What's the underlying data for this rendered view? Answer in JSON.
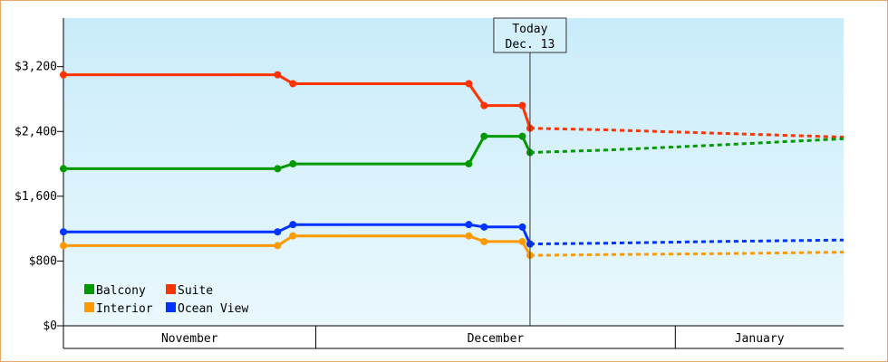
{
  "chart_data": {
    "type": "line",
    "title": "",
    "xlabel": "",
    "ylabel": "",
    "x_start": "2023-10-13",
    "x_end": "2024-01-23",
    "today_date": "2023-12-13",
    "ylim": [
      0,
      3800
    ],
    "y_ticks": [
      {
        "value": 0,
        "label": "$0"
      },
      {
        "value": 800,
        "label": "$800"
      },
      {
        "value": 1600,
        "label": "$1,600"
      },
      {
        "value": 2400,
        "label": "$2,400"
      },
      {
        "value": 3200,
        "label": "$3,200"
      }
    ],
    "months": [
      {
        "label": "November",
        "start": "2023-10-13",
        "end": "2023-11-15"
      },
      {
        "label": "December",
        "start": "2023-11-15",
        "end": "2024-01-01"
      },
      {
        "label": "January",
        "start": "2024-01-01",
        "end": "2024-01-23"
      }
    ],
    "today_marker": {
      "line1": "Today",
      "line2": "Dec. 13"
    },
    "background_gradient": {
      "top": "#c9ecfa",
      "bottom": "#eaf8fd"
    },
    "legend_position": "bottom-left",
    "series": [
      {
        "name": "Suite",
        "color": "#ff3300",
        "history": [
          [
            "2023-10-13",
            3100
          ],
          [
            "2023-11-10",
            3100
          ],
          [
            "2023-11-12",
            2990
          ],
          [
            "2023-12-05",
            2990
          ],
          [
            "2023-12-07",
            2720
          ],
          [
            "2023-12-12",
            2720
          ],
          [
            "2023-12-13",
            2440
          ]
        ],
        "forecast": [
          [
            "2023-12-13",
            2440
          ],
          [
            "2023-12-23",
            2420
          ],
          [
            "2024-01-06",
            2380
          ],
          [
            "2024-01-23",
            2330
          ]
        ]
      },
      {
        "name": "Balcony",
        "color": "#009900",
        "history": [
          [
            "2023-10-13",
            1940
          ],
          [
            "2023-11-10",
            1940
          ],
          [
            "2023-11-12",
            2000
          ],
          [
            "2023-12-05",
            2000
          ],
          [
            "2023-12-07",
            2340
          ],
          [
            "2023-12-12",
            2340
          ],
          [
            "2023-12-13",
            2140
          ]
        ],
        "forecast": [
          [
            "2023-12-13",
            2140
          ],
          [
            "2023-12-23",
            2170
          ],
          [
            "2024-01-06",
            2230
          ],
          [
            "2024-01-23",
            2310
          ]
        ]
      },
      {
        "name": "Ocean View",
        "color": "#0033ff",
        "history": [
          [
            "2023-10-13",
            1160
          ],
          [
            "2023-11-10",
            1160
          ],
          [
            "2023-11-12",
            1250
          ],
          [
            "2023-12-05",
            1250
          ],
          [
            "2023-12-07",
            1220
          ],
          [
            "2023-12-12",
            1220
          ],
          [
            "2023-12-13",
            1010
          ]
        ],
        "forecast": [
          [
            "2023-12-13",
            1010
          ],
          [
            "2023-12-23",
            1020
          ],
          [
            "2024-01-06",
            1040
          ],
          [
            "2024-01-23",
            1060
          ]
        ]
      },
      {
        "name": "Interior",
        "color": "#ff9900",
        "history": [
          [
            "2023-10-13",
            990
          ],
          [
            "2023-11-10",
            990
          ],
          [
            "2023-11-12",
            1110
          ],
          [
            "2023-12-05",
            1110
          ],
          [
            "2023-12-07",
            1040
          ],
          [
            "2023-12-12",
            1040
          ],
          [
            "2023-12-13",
            870
          ]
        ],
        "forecast": [
          [
            "2023-12-13",
            870
          ],
          [
            "2023-12-23",
            880
          ],
          [
            "2024-01-06",
            890
          ],
          [
            "2024-01-23",
            910
          ]
        ]
      }
    ],
    "legend": [
      {
        "name": "Balcony",
        "color": "#009900"
      },
      {
        "name": "Suite",
        "color": "#ff3300"
      },
      {
        "name": "Interior",
        "color": "#ff9900"
      },
      {
        "name": "Ocean View",
        "color": "#0033ff"
      }
    ]
  }
}
